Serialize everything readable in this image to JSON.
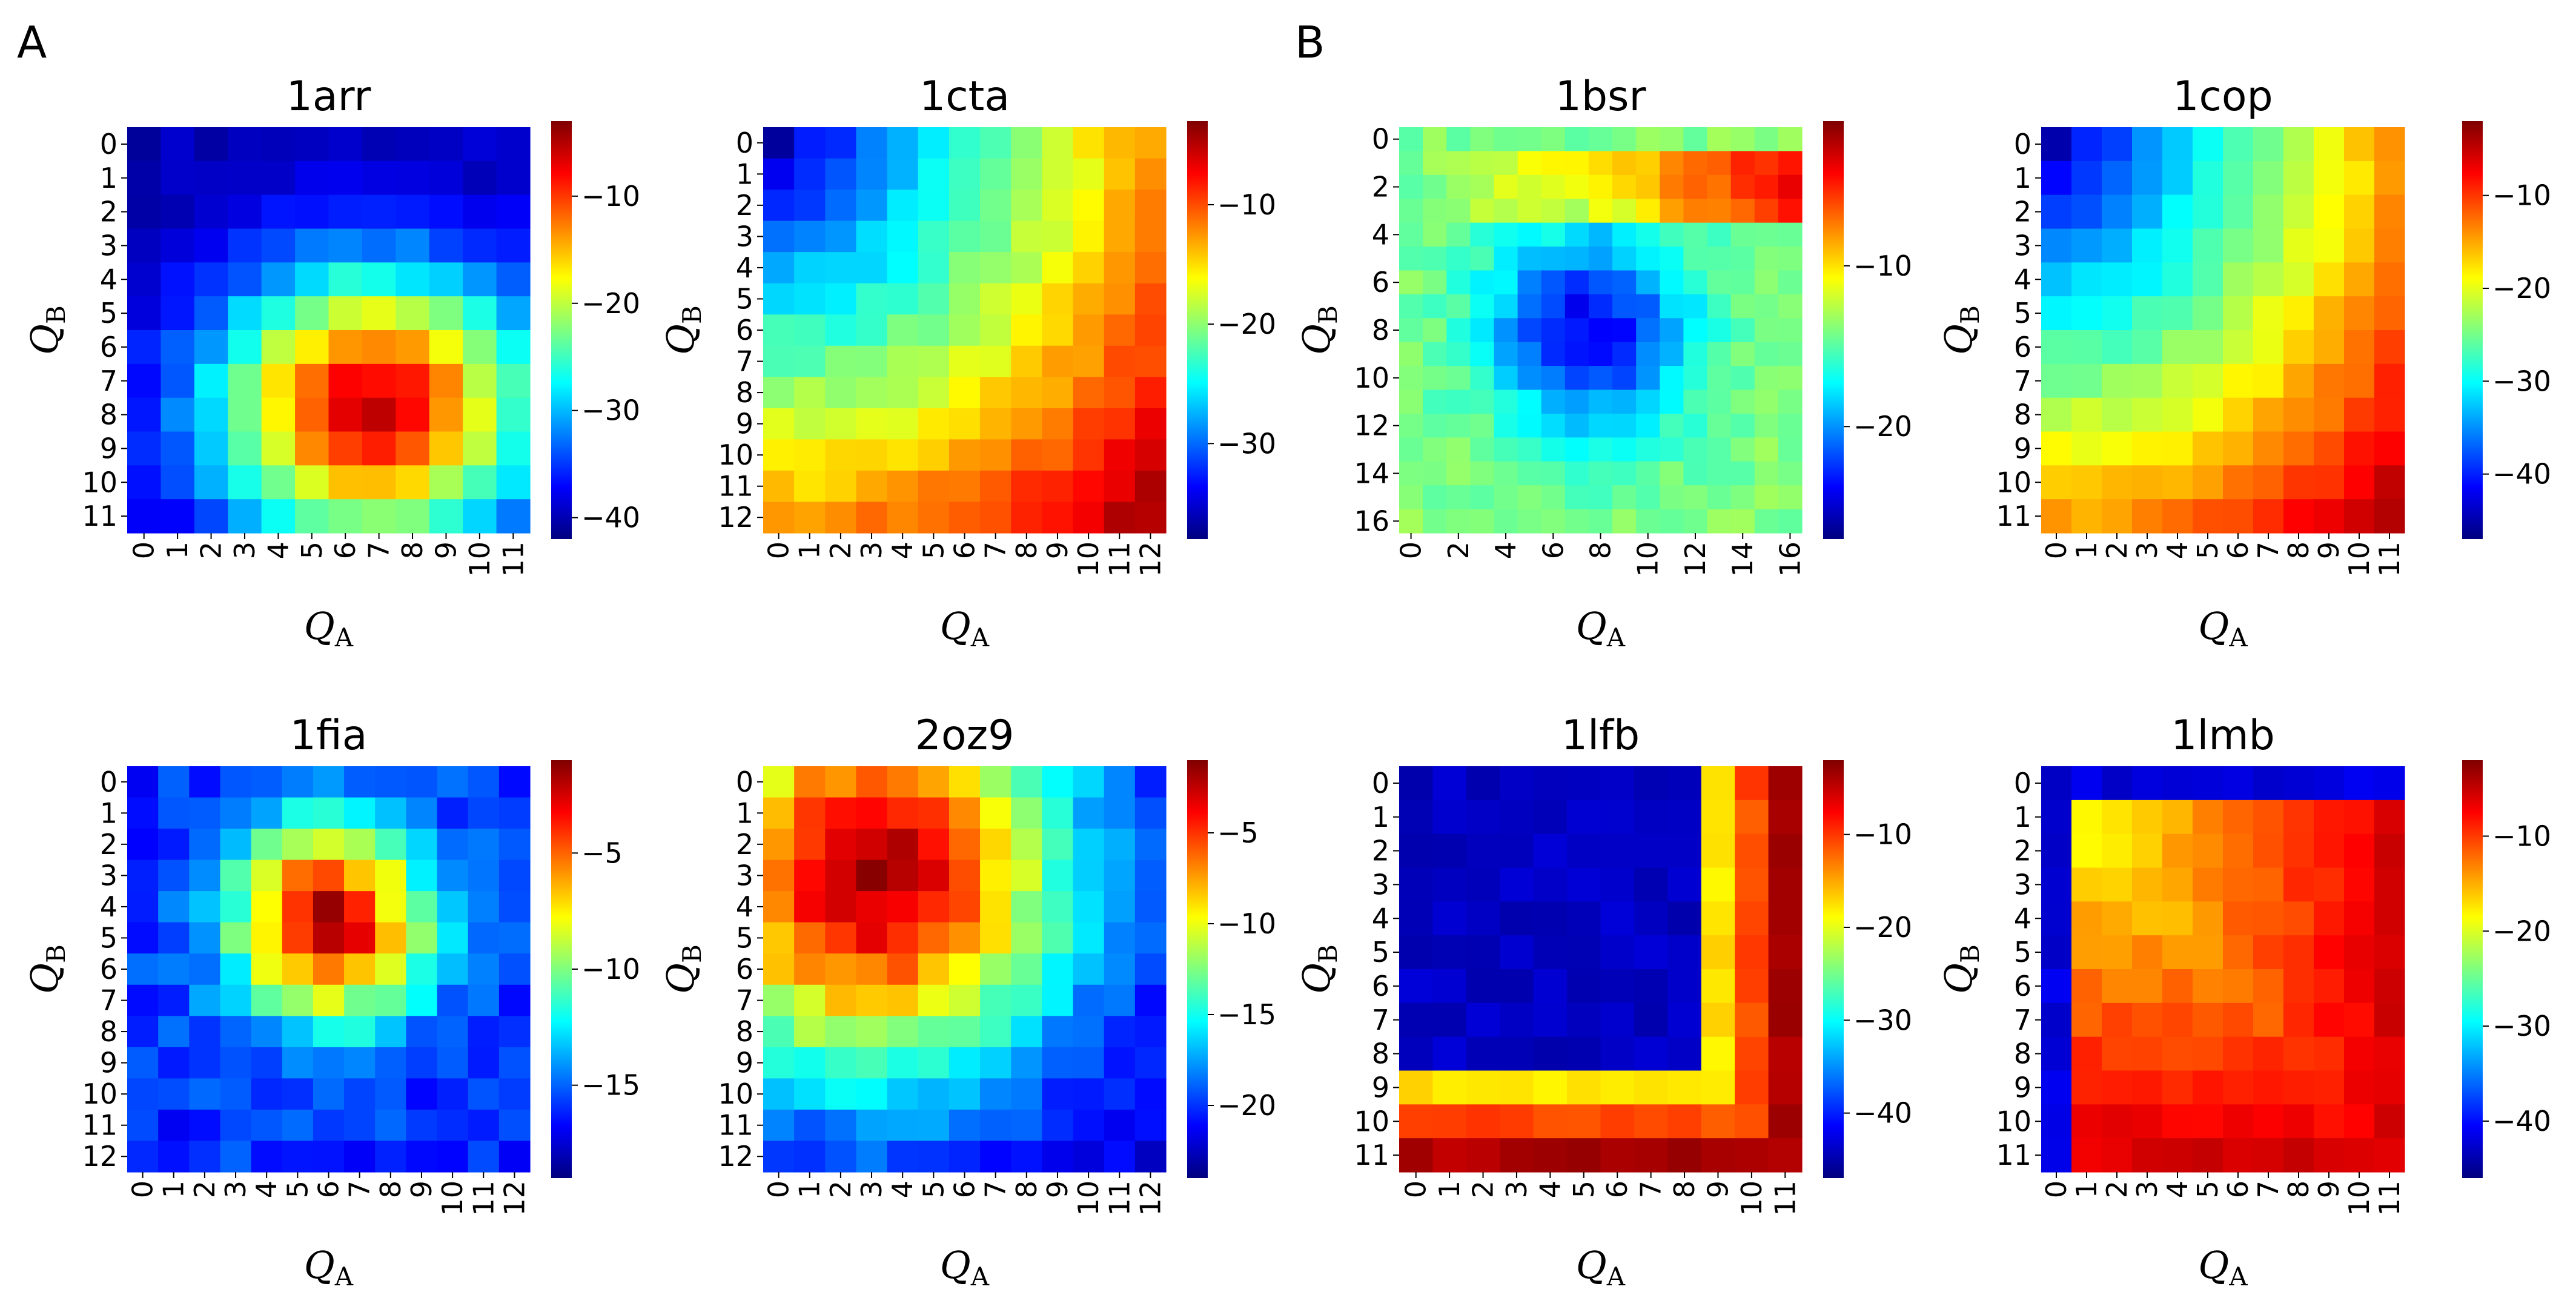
{
  "panel_labels": [
    "A",
    "B"
  ],
  "chart_data": [
    {
      "type": "heatmap",
      "title": "1arr",
      "xlabel": "Q_A",
      "ylabel": "Q_B",
      "xlabel_main": "Q",
      "xlabel_sub": "A",
      "ylabel_main": "Q",
      "ylabel_sub": "B",
      "n": 12,
      "xticks": [
        0,
        1,
        2,
        3,
        4,
        5,
        6,
        7,
        8,
        9,
        10,
        11
      ],
      "yticks": [
        0,
        1,
        2,
        3,
        4,
        5,
        6,
        7,
        8,
        9,
        10,
        11
      ],
      "vmin": -42,
      "vmax": -3,
      "colorbar_ticks": [
        -10,
        -20,
        -30,
        -40
      ],
      "cmap": [
        "#00007f",
        "#0000ff",
        "#007fff",
        "#00ffff",
        "#7fff7f",
        "#ffff00",
        "#ff7f00",
        "#ff0000",
        "#7f0000"
      ],
      "model": {
        "kind": "radial",
        "base": -40,
        "amp": 34,
        "cx": 6.8,
        "cy": 7.8,
        "sx": 3.3,
        "sy": 2.8
      }
    },
    {
      "type": "heatmap",
      "title": "1cta",
      "xlabel": "Q_A",
      "ylabel": "Q_B",
      "xlabel_main": "Q",
      "xlabel_sub": "A",
      "ylabel_main": "Q",
      "ylabel_sub": "B",
      "n": 13,
      "xticks": [
        0,
        1,
        2,
        3,
        4,
        5,
        6,
        7,
        8,
        9,
        10,
        11,
        12
      ],
      "yticks": [
        0,
        1,
        2,
        3,
        4,
        5,
        6,
        7,
        8,
        9,
        10,
        11,
        12
      ],
      "vmin": -38,
      "vmax": -3,
      "colorbar_ticks": [
        -10,
        -20,
        -30
      ],
      "cmap": [
        "#00007f",
        "#0000ff",
        "#007fff",
        "#00ffff",
        "#7fff7f",
        "#ffff00",
        "#ff7f00",
        "#ff0000",
        "#7f0000"
      ],
      "model": {
        "kind": "gradient",
        "base": -36,
        "amp": 32,
        "cx": 12,
        "cy": 12,
        "sx": 12,
        "sy": 12
      }
    },
    {
      "type": "heatmap",
      "title": "1bsr",
      "xlabel": "Q_A",
      "ylabel": "Q_B",
      "xlabel_main": "Q",
      "xlabel_sub": "A",
      "ylabel_main": "Q",
      "ylabel_sub": "B",
      "n": 17,
      "xticks": [
        0,
        2,
        4,
        6,
        8,
        10,
        12,
        14,
        16
      ],
      "yticks": [
        0,
        2,
        4,
        6,
        8,
        10,
        12,
        14,
        16
      ],
      "vmin": -27,
      "vmax": -1,
      "colorbar_ticks": [
        -10,
        -20
      ],
      "cmap": [
        "#00007f",
        "#0000ff",
        "#007fff",
        "#00ffff",
        "#7fff7f",
        "#ffff00",
        "#ff7f00",
        "#ff0000",
        "#7f0000"
      ],
      "model": {
        "kind": "cross",
        "base": -14,
        "amp": 12,
        "cx": 7.5,
        "cy": 8,
        "sx": 2,
        "sy": 2
      }
    },
    {
      "type": "heatmap",
      "title": "1cop",
      "xlabel": "Q_A",
      "ylabel": "Q_B",
      "xlabel_main": "Q",
      "xlabel_sub": "A",
      "ylabel_main": "Q",
      "ylabel_sub": "B",
      "n": 12,
      "xticks": [
        0,
        1,
        2,
        3,
        4,
        5,
        6,
        7,
        8,
        9,
        10,
        11
      ],
      "yticks": [
        0,
        1,
        2,
        3,
        4,
        5,
        6,
        7,
        8,
        9,
        10,
        11
      ],
      "vmin": -47,
      "vmax": -2,
      "colorbar_ticks": [
        -10,
        -20,
        -30,
        -40
      ],
      "cmap": [
        "#00007f",
        "#0000ff",
        "#007fff",
        "#00ffff",
        "#7fff7f",
        "#ffff00",
        "#ff7f00",
        "#ff0000",
        "#7f0000"
      ],
      "model": {
        "kind": "gradient",
        "base": -44,
        "amp": 40,
        "cx": 11,
        "cy": 11,
        "sx": 11,
        "sy": 11
      }
    },
    {
      "type": "heatmap",
      "title": "1fia",
      "xlabel": "Q_A",
      "ylabel": "Q_B",
      "xlabel_main": "Q",
      "xlabel_sub": "A",
      "ylabel_main": "Q",
      "ylabel_sub": "B",
      "n": 13,
      "xticks": [
        0,
        1,
        2,
        3,
        4,
        5,
        6,
        7,
        8,
        9,
        10,
        11,
        12
      ],
      "yticks": [
        0,
        1,
        2,
        3,
        4,
        5,
        6,
        7,
        8,
        9,
        10,
        11,
        12
      ],
      "vmin": -19,
      "vmax": -1,
      "colorbar_ticks": [
        -5,
        -10,
        -15
      ],
      "cmap": [
        "#00007f",
        "#0000ff",
        "#007fff",
        "#00ffff",
        "#7fff7f",
        "#ffff00",
        "#ff7f00",
        "#ff0000",
        "#7f0000"
      ],
      "model": {
        "kind": "radial",
        "base": -16,
        "amp": 14,
        "cx": 6,
        "cy": 4.5,
        "sx": 2.2,
        "sy": 2.2
      }
    },
    {
      "type": "heatmap",
      "title": "2oz9",
      "xlabel": "Q_A",
      "ylabel": "Q_B",
      "xlabel_main": "Q",
      "xlabel_sub": "A",
      "ylabel_main": "Q",
      "ylabel_sub": "B",
      "n": 13,
      "xticks": [
        0,
        1,
        2,
        3,
        4,
        5,
        6,
        7,
        8,
        9,
        10,
        11,
        12
      ],
      "yticks": [
        0,
        1,
        2,
        3,
        4,
        5,
        6,
        7,
        8,
        9,
        10,
        11,
        12
      ],
      "vmin": -24,
      "vmax": -1,
      "colorbar_ticks": [
        -5,
        -10,
        -15,
        -20
      ],
      "cmap": [
        "#00007f",
        "#0000ff",
        "#007fff",
        "#00ffff",
        "#7fff7f",
        "#ffff00",
        "#ff7f00",
        "#ff0000",
        "#7f0000"
      ],
      "model": {
        "kind": "radial",
        "base": -22,
        "amp": 20,
        "cx": 3,
        "cy": 3,
        "sx": 4.5,
        "sy": 4.5
      }
    },
    {
      "type": "heatmap",
      "title": "1lfb",
      "xlabel": "Q_A",
      "ylabel": "Q_B",
      "xlabel_main": "Q",
      "xlabel_sub": "A",
      "ylabel_main": "Q",
      "ylabel_sub": "B",
      "n": 12,
      "xticks": [
        0,
        1,
        2,
        3,
        4,
        5,
        6,
        7,
        8,
        9,
        10,
        11
      ],
      "yticks": [
        0,
        1,
        2,
        3,
        4,
        5,
        6,
        7,
        8,
        9,
        10,
        11
      ],
      "vmin": -47,
      "vmax": -2,
      "colorbar_ticks": [
        -10,
        -20,
        -30,
        -40
      ],
      "cmap": [
        "#00007f",
        "#0000ff",
        "#007fff",
        "#00ffff",
        "#7fff7f",
        "#ffff00",
        "#ff7f00",
        "#ff0000",
        "#7f0000"
      ],
      "model": {
        "kind": "corner",
        "base": -44,
        "amp": 40,
        "cx": 11,
        "cy": 11,
        "sx": 8.5,
        "sy": 8.5
      }
    },
    {
      "type": "heatmap",
      "title": "1lmb",
      "xlabel": "Q_A",
      "ylabel": "Q_B",
      "xlabel_main": "Q",
      "xlabel_sub": "A",
      "ylabel_main": "Q",
      "ylabel_sub": "B",
      "n": 12,
      "xticks": [
        0,
        1,
        2,
        3,
        4,
        5,
        6,
        7,
        8,
        9,
        10,
        11
      ],
      "yticks": [
        0,
        1,
        2,
        3,
        4,
        5,
        6,
        7,
        8,
        9,
        10,
        11
      ],
      "vmin": -46,
      "vmax": -2,
      "colorbar_ticks": [
        -10,
        -20,
        -30,
        -40
      ],
      "cmap": [
        "#00007f",
        "#0000ff",
        "#007fff",
        "#00ffff",
        "#7fff7f",
        "#ffff00",
        "#ff7f00",
        "#ff0000",
        "#7f0000"
      ],
      "model": {
        "kind": "edge",
        "base": -20,
        "amp": 14,
        "cx": 11,
        "cy": 11,
        "sx": 11,
        "sy": 11
      }
    }
  ]
}
